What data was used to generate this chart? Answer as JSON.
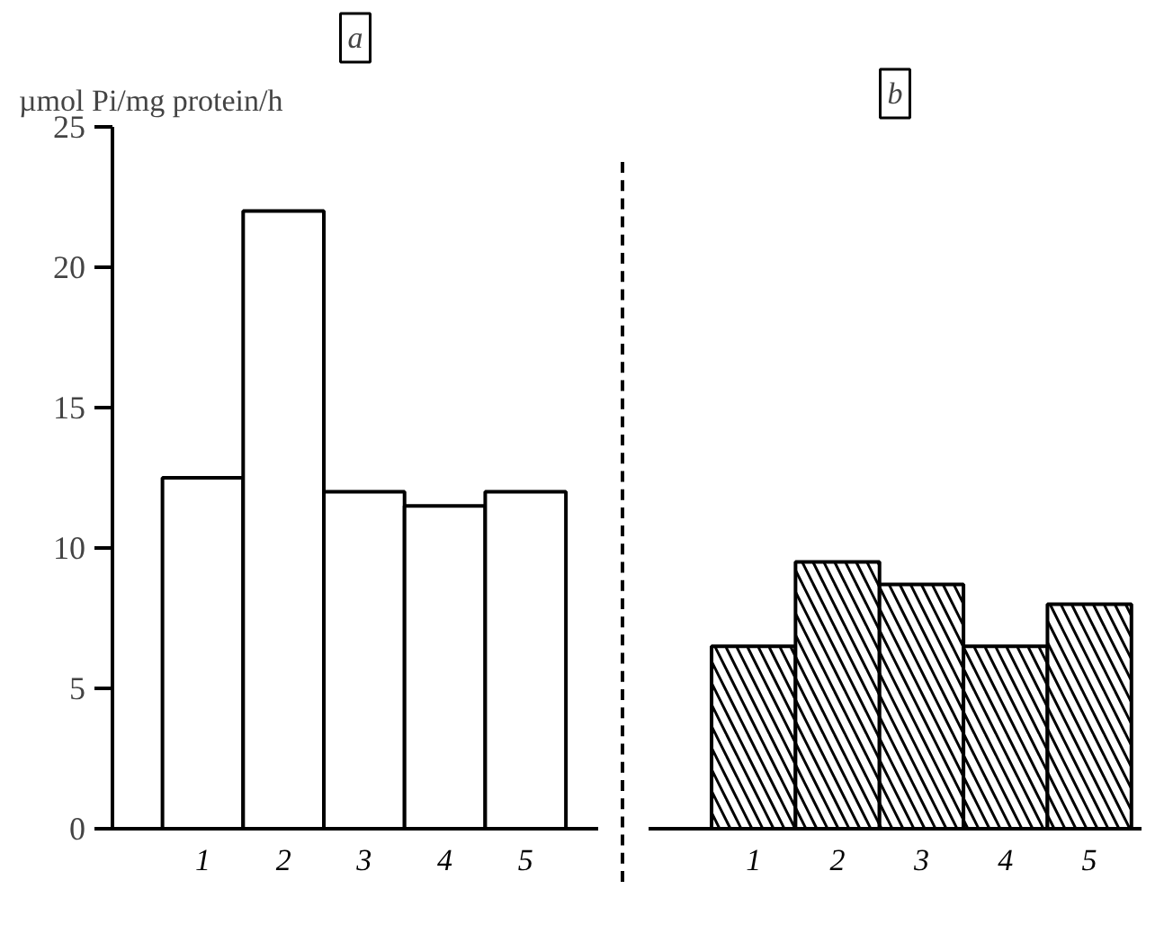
{
  "chart_data": [
    {
      "type": "bar",
      "title": "a",
      "ylabel": "µmol Pi/mg protein/h",
      "categories": [
        "1",
        "2",
        "3",
        "4",
        "5"
      ],
      "series": [
        {
          "color": "#ffffff",
          "values": [
            12.5,
            22,
            12,
            11.5,
            12
          ]
        }
      ],
      "ylim": [
        0,
        25
      ],
      "yticks": [
        0,
        5,
        10,
        15,
        20,
        25
      ],
      "grid": false
    },
    {
      "type": "bar",
      "title": "b",
      "categories": [
        "1",
        "2",
        "3",
        "4",
        "5"
      ],
      "series": [
        {
          "color": "#ffffff",
          "values": [
            6.5,
            9.5,
            8.7,
            6.5,
            8.0
          ]
        }
      ],
      "ylim": [
        0,
        25
      ],
      "yticks": [
        0,
        5,
        10,
        15,
        20,
        25
      ],
      "tick_labels": "x",
      "grid": false
    }
  ]
}
